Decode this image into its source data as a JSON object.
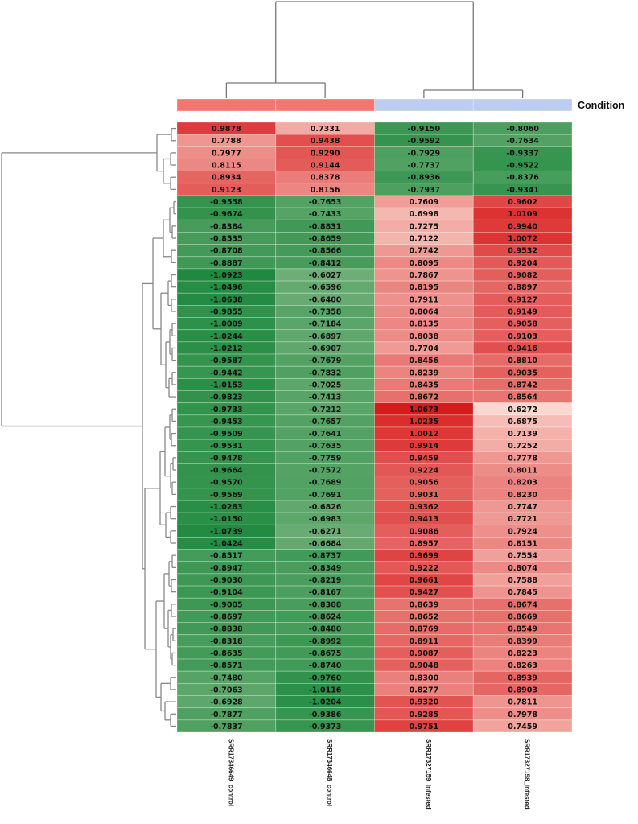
{
  "chart_data": {
    "type": "heatmap",
    "title": "",
    "columns": [
      "SRR17346649_control",
      "SRR17346648_control",
      "SRR17327159_infested",
      "SRR17327158_infested"
    ],
    "annotation": {
      "title": "Condition",
      "values": [
        "control",
        "control",
        "infested",
        "infested"
      ],
      "colors": {
        "control": "#f57670",
        "infested": "#bccdf0"
      }
    },
    "color_scale": {
      "low": "#1f8a3f",
      "mid": "#ffffff",
      "high": "#d7191a"
    },
    "rows": [
      [
        0.9878,
        0.7331,
        -0.915,
        -0.806
      ],
      [
        0.7788,
        0.9438,
        -0.9592,
        -0.7634
      ],
      [
        0.7977,
        0.929,
        -0.7929,
        -0.9337
      ],
      [
        0.8115,
        0.9144,
        -0.7737,
        -0.9522
      ],
      [
        0.8934,
        0.8378,
        -0.8936,
        -0.8376
      ],
      [
        0.9123,
        0.8156,
        -0.7937,
        -0.9341
      ],
      [
        -0.9558,
        -0.7653,
        0.7609,
        0.9602
      ],
      [
        -0.9674,
        -0.7433,
        0.6998,
        1.0109
      ],
      [
        -0.8384,
        -0.8831,
        0.7275,
        0.994
      ],
      [
        -0.8535,
        -0.8659,
        0.7122,
        1.0072
      ],
      [
        -0.8708,
        -0.8566,
        0.7742,
        0.9532
      ],
      [
        -0.8887,
        -0.8412,
        0.8095,
        0.9204
      ],
      [
        -1.0923,
        -0.6027,
        0.7867,
        0.9082
      ],
      [
        -1.0496,
        -0.6596,
        0.8195,
        0.8897
      ],
      [
        -1.0638,
        -0.64,
        0.7911,
        0.9127
      ],
      [
        -0.9855,
        -0.7358,
        0.8064,
        0.9149
      ],
      [
        -1.0009,
        -0.7184,
        0.8135,
        0.9058
      ],
      [
        -1.0244,
        -0.6897,
        0.8038,
        0.9103
      ],
      [
        -1.0212,
        -0.6907,
        0.7704,
        0.9416
      ],
      [
        -0.9587,
        -0.7679,
        0.8456,
        0.881
      ],
      [
        -0.9442,
        -0.7832,
        0.8239,
        0.9035
      ],
      [
        -1.0153,
        -0.7025,
        0.8435,
        0.8742
      ],
      [
        -0.9823,
        -0.7413,
        0.8672,
        0.8564
      ],
      [
        -0.9733,
        -0.7212,
        1.0673,
        0.6272
      ],
      [
        -0.9453,
        -0.7657,
        1.0235,
        0.6875
      ],
      [
        -0.9509,
        -0.7641,
        1.0012,
        0.7139
      ],
      [
        -0.9531,
        -0.7635,
        0.9914,
        0.7252
      ],
      [
        -0.9478,
        -0.7759,
        0.9459,
        0.7778
      ],
      [
        -0.9664,
        -0.7572,
        0.9224,
        0.8011
      ],
      [
        -0.957,
        -0.7689,
        0.9056,
        0.8203
      ],
      [
        -0.9569,
        -0.7691,
        0.9031,
        0.823
      ],
      [
        -1.0283,
        -0.6826,
        0.9362,
        0.7747
      ],
      [
        -1.015,
        -0.6983,
        0.9413,
        0.7721
      ],
      [
        -1.0739,
        -0.6271,
        0.9086,
        0.7924
      ],
      [
        -1.0424,
        -0.6684,
        0.8957,
        0.8151
      ],
      [
        -0.8517,
        -0.8737,
        0.9699,
        0.7554
      ],
      [
        -0.8947,
        -0.8349,
        0.9222,
        0.8074
      ],
      [
        -0.903,
        -0.8219,
        0.9661,
        0.7588
      ],
      [
        -0.9104,
        -0.8167,
        0.9427,
        0.7845
      ],
      [
        -0.9005,
        -0.8308,
        0.8639,
        0.8674
      ],
      [
        -0.8697,
        -0.8624,
        0.8652,
        0.8669
      ],
      [
        -0.8838,
        -0.848,
        0.8769,
        0.8549
      ],
      [
        -0.8318,
        -0.8992,
        0.8911,
        0.8399
      ],
      [
        -0.8635,
        -0.8675,
        0.9087,
        0.8223
      ],
      [
        -0.8571,
        -0.874,
        0.9048,
        0.8263
      ],
      [
        -0.748,
        -0.976,
        0.83,
        0.8939
      ],
      [
        -0.7063,
        -1.0116,
        0.8277,
        0.8903
      ],
      [
        -0.6928,
        -1.0204,
        0.932,
        0.7811
      ],
      [
        -0.7877,
        -0.9386,
        0.9285,
        0.7978
      ],
      [
        -0.7837,
        -0.9373,
        0.9751,
        0.7459
      ]
    ]
  }
}
